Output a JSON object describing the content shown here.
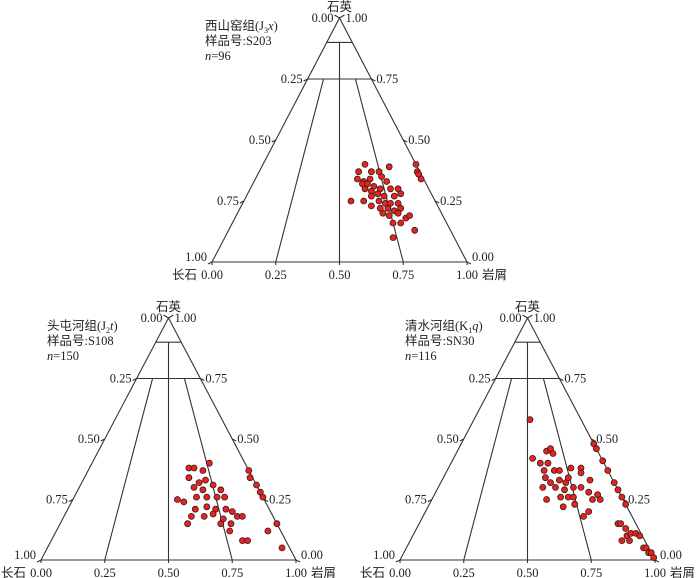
{
  "colors": {
    "point_fill": "#e3241f",
    "point_stroke": "#3a1a1a",
    "line": "#333333"
  },
  "chart_data": [
    {
      "type": "scatter",
      "subtype": "ternary",
      "apex_label": "石英",
      "left_label": "长石",
      "right_label": "岩屑",
      "formation": "西山窑组(J",
      "code_sub": "3",
      "code_italic": "x",
      "code_close": ")",
      "sample": "样品号:S203",
      "n_symbol": "n",
      "n_value": "=96",
      "apex_ticks": [
        "0.00",
        "1.00"
      ],
      "left_ticks": [
        "0.25",
        "0.50",
        "0.75",
        "1.00"
      ],
      "right_ticks": [
        "0.75",
        "0.50",
        "0.25",
        "0.00"
      ],
      "bottom_ticks": [
        "0.00",
        "0.25",
        "0.50",
        "0.75",
        "1.00"
      ],
      "points_quartz_lithic": [
        [
          0.4,
          0.4
        ],
        [
          0.37,
          0.39
        ],
        [
          0.39,
          0.5
        ],
        [
          0.37,
          0.44
        ],
        [
          0.37,
          0.47
        ],
        [
          0.34,
          0.4
        ],
        [
          0.33,
          0.43
        ],
        [
          0.34,
          0.45
        ],
        [
          0.35,
          0.49
        ],
        [
          0.33,
          0.52
        ],
        [
          0.32,
          0.43
        ],
        [
          0.32,
          0.45
        ],
        [
          0.31,
          0.48
        ],
        [
          0.3,
          0.58
        ],
        [
          0.3,
          0.45
        ],
        [
          0.29,
          0.48
        ],
        [
          0.3,
          0.51
        ],
        [
          0.3,
          0.55
        ],
        [
          0.25,
          0.42
        ],
        [
          0.25,
          0.47
        ],
        [
          0.27,
          0.49
        ],
        [
          0.28,
          0.51
        ],
        [
          0.27,
          0.54
        ],
        [
          0.27,
          0.58
        ],
        [
          0.28,
          0.6
        ],
        [
          0.23,
          0.51
        ],
        [
          0.25,
          0.53
        ],
        [
          0.24,
          0.56
        ],
        [
          0.24,
          0.58
        ],
        [
          0.24,
          0.61
        ],
        [
          0.22,
          0.55
        ],
        [
          0.22,
          0.58
        ],
        [
          0.21,
          0.61
        ],
        [
          0.22,
          0.63
        ],
        [
          0.2,
          0.57
        ],
        [
          0.19,
          0.6
        ],
        [
          0.2,
          0.63
        ],
        [
          0.18,
          0.67
        ],
        [
          0.19,
          0.68
        ],
        [
          0.16,
          0.63
        ],
        [
          0.16,
          0.66
        ],
        [
          0.13,
          0.73
        ],
        [
          0.1,
          0.66
        ],
        [
          0.4,
          0.6
        ],
        [
          0.37,
          0.62
        ],
        [
          0.36,
          0.63
        ],
        [
          0.34,
          0.65
        ]
      ]
    },
    {
      "type": "scatter",
      "subtype": "ternary",
      "apex_label": "石英",
      "left_label": "长石",
      "right_label": "岩屑",
      "formation": "头屯河组(J",
      "code_sub": "2",
      "code_italic": "t",
      "code_close": ")",
      "sample": "样品号:S108",
      "n_symbol": "n",
      "n_value": "=150",
      "apex_ticks": [
        "0.00",
        "1.00"
      ],
      "left_ticks": [
        "0.25",
        "0.50",
        "0.75",
        "1.00"
      ],
      "right_ticks": [
        "0.75",
        "0.50",
        "0.25",
        "0.00"
      ],
      "bottom_ticks": [
        "0.00",
        "0.25",
        "0.50",
        "0.75",
        "1.00"
      ],
      "points_quartz_lithic": [
        [
          0.4,
          0.46
        ],
        [
          0.38,
          0.39
        ],
        [
          0.38,
          0.41
        ],
        [
          0.34,
          0.41
        ],
        [
          0.37,
          0.45
        ],
        [
          0.32,
          0.46
        ],
        [
          0.33,
          0.48
        ],
        [
          0.31,
          0.52
        ],
        [
          0.3,
          0.45
        ],
        [
          0.29,
          0.49
        ],
        [
          0.29,
          0.56
        ],
        [
          0.25,
          0.41
        ],
        [
          0.24,
          0.44
        ],
        [
          0.26,
          0.48
        ],
        [
          0.26,
          0.52
        ],
        [
          0.26,
          0.56
        ],
        [
          0.26,
          0.59
        ],
        [
          0.21,
          0.5
        ],
        [
          0.22,
          0.54
        ],
        [
          0.21,
          0.58
        ],
        [
          0.21,
          0.62
        ],
        [
          0.2,
          0.65
        ],
        [
          0.18,
          0.5
        ],
        [
          0.18,
          0.55
        ],
        [
          0.19,
          0.58
        ],
        [
          0.17,
          0.63
        ],
        [
          0.18,
          0.68
        ],
        [
          0.18,
          0.7
        ],
        [
          0.15,
          0.5
        ],
        [
          0.15,
          0.63
        ],
        [
          0.15,
          0.67
        ],
        [
          0.12,
          0.68
        ],
        [
          0.08,
          0.75
        ],
        [
          0.08,
          0.77
        ],
        [
          0.12,
          0.83
        ],
        [
          0.05,
          0.92
        ],
        [
          0.37,
          0.63
        ],
        [
          0.34,
          0.65
        ],
        [
          0.31,
          0.69
        ],
        [
          0.28,
          0.72
        ],
        [
          0.26,
          0.74
        ],
        [
          0.15,
          0.85
        ]
      ]
    },
    {
      "type": "scatter",
      "subtype": "ternary",
      "apex_label": "石英",
      "left_label": "长石",
      "right_label": "岩屑",
      "formation": "清水河组(K",
      "code_sub": "1",
      "code_italic": "q",
      "code_close": ")",
      "sample": "样品号:SN30",
      "n_symbol": "n",
      "n_value": "=116",
      "apex_ticks": [
        "0.00",
        "1.00"
      ],
      "left_ticks": [
        "0.25",
        "0.50",
        "0.75",
        "1.00"
      ],
      "right_ticks": [
        "0.75",
        "0.50",
        "0.25",
        "0.00"
      ],
      "bottom_ticks": [
        "0.00",
        "0.25",
        "0.50",
        "0.75",
        "1.00"
      ],
      "points_quartz_lithic": [
        [
          0.58,
          0.22
        ],
        [
          0.42,
          0.31
        ],
        [
          0.45,
          0.35
        ],
        [
          0.46,
          0.36
        ],
        [
          0.44,
          0.38
        ],
        [
          0.4,
          0.35
        ],
        [
          0.4,
          0.38
        ],
        [
          0.37,
          0.38
        ],
        [
          0.34,
          0.4
        ],
        [
          0.37,
          0.42
        ],
        [
          0.37,
          0.44
        ],
        [
          0.38,
          0.48
        ],
        [
          0.38,
          0.52
        ],
        [
          0.36,
          0.53
        ],
        [
          0.33,
          0.58
        ],
        [
          0.32,
          0.43
        ],
        [
          0.33,
          0.46
        ],
        [
          0.32,
          0.49
        ],
        [
          0.34,
          0.49
        ],
        [
          0.3,
          0.41
        ],
        [
          0.3,
          0.46
        ],
        [
          0.29,
          0.5
        ],
        [
          0.3,
          0.53
        ],
        [
          0.3,
          0.56
        ],
        [
          0.28,
          0.6
        ],
        [
          0.27,
          0.64
        ],
        [
          0.25,
          0.45
        ],
        [
          0.26,
          0.5
        ],
        [
          0.26,
          0.53
        ],
        [
          0.26,
          0.55
        ],
        [
          0.25,
          0.63
        ],
        [
          0.25,
          0.66
        ],
        [
          0.22,
          0.53
        ],
        [
          0.23,
          0.57
        ],
        [
          0.2,
          0.64
        ],
        [
          0.18,
          0.63
        ],
        [
          0.48,
          0.52
        ],
        [
          0.46,
          0.54
        ],
        [
          0.41,
          0.59
        ],
        [
          0.37,
          0.63
        ],
        [
          0.32,
          0.68
        ],
        [
          0.29,
          0.71
        ],
        [
          0.26,
          0.74
        ],
        [
          0.23,
          0.77
        ],
        [
          0.15,
          0.78
        ],
        [
          0.15,
          0.79
        ],
        [
          0.13,
          0.82
        ],
        [
          0.1,
          0.84
        ],
        [
          0.08,
          0.83
        ],
        [
          0.08,
          0.86
        ],
        [
          0.11,
          0.85
        ],
        [
          0.11,
          0.87
        ],
        [
          0.1,
          0.89
        ],
        [
          0.05,
          0.93
        ],
        [
          0.05,
          0.94
        ],
        [
          0.03,
          0.96
        ],
        [
          0.03,
          0.97
        ],
        [
          0.01,
          0.99
        ]
      ]
    }
  ]
}
